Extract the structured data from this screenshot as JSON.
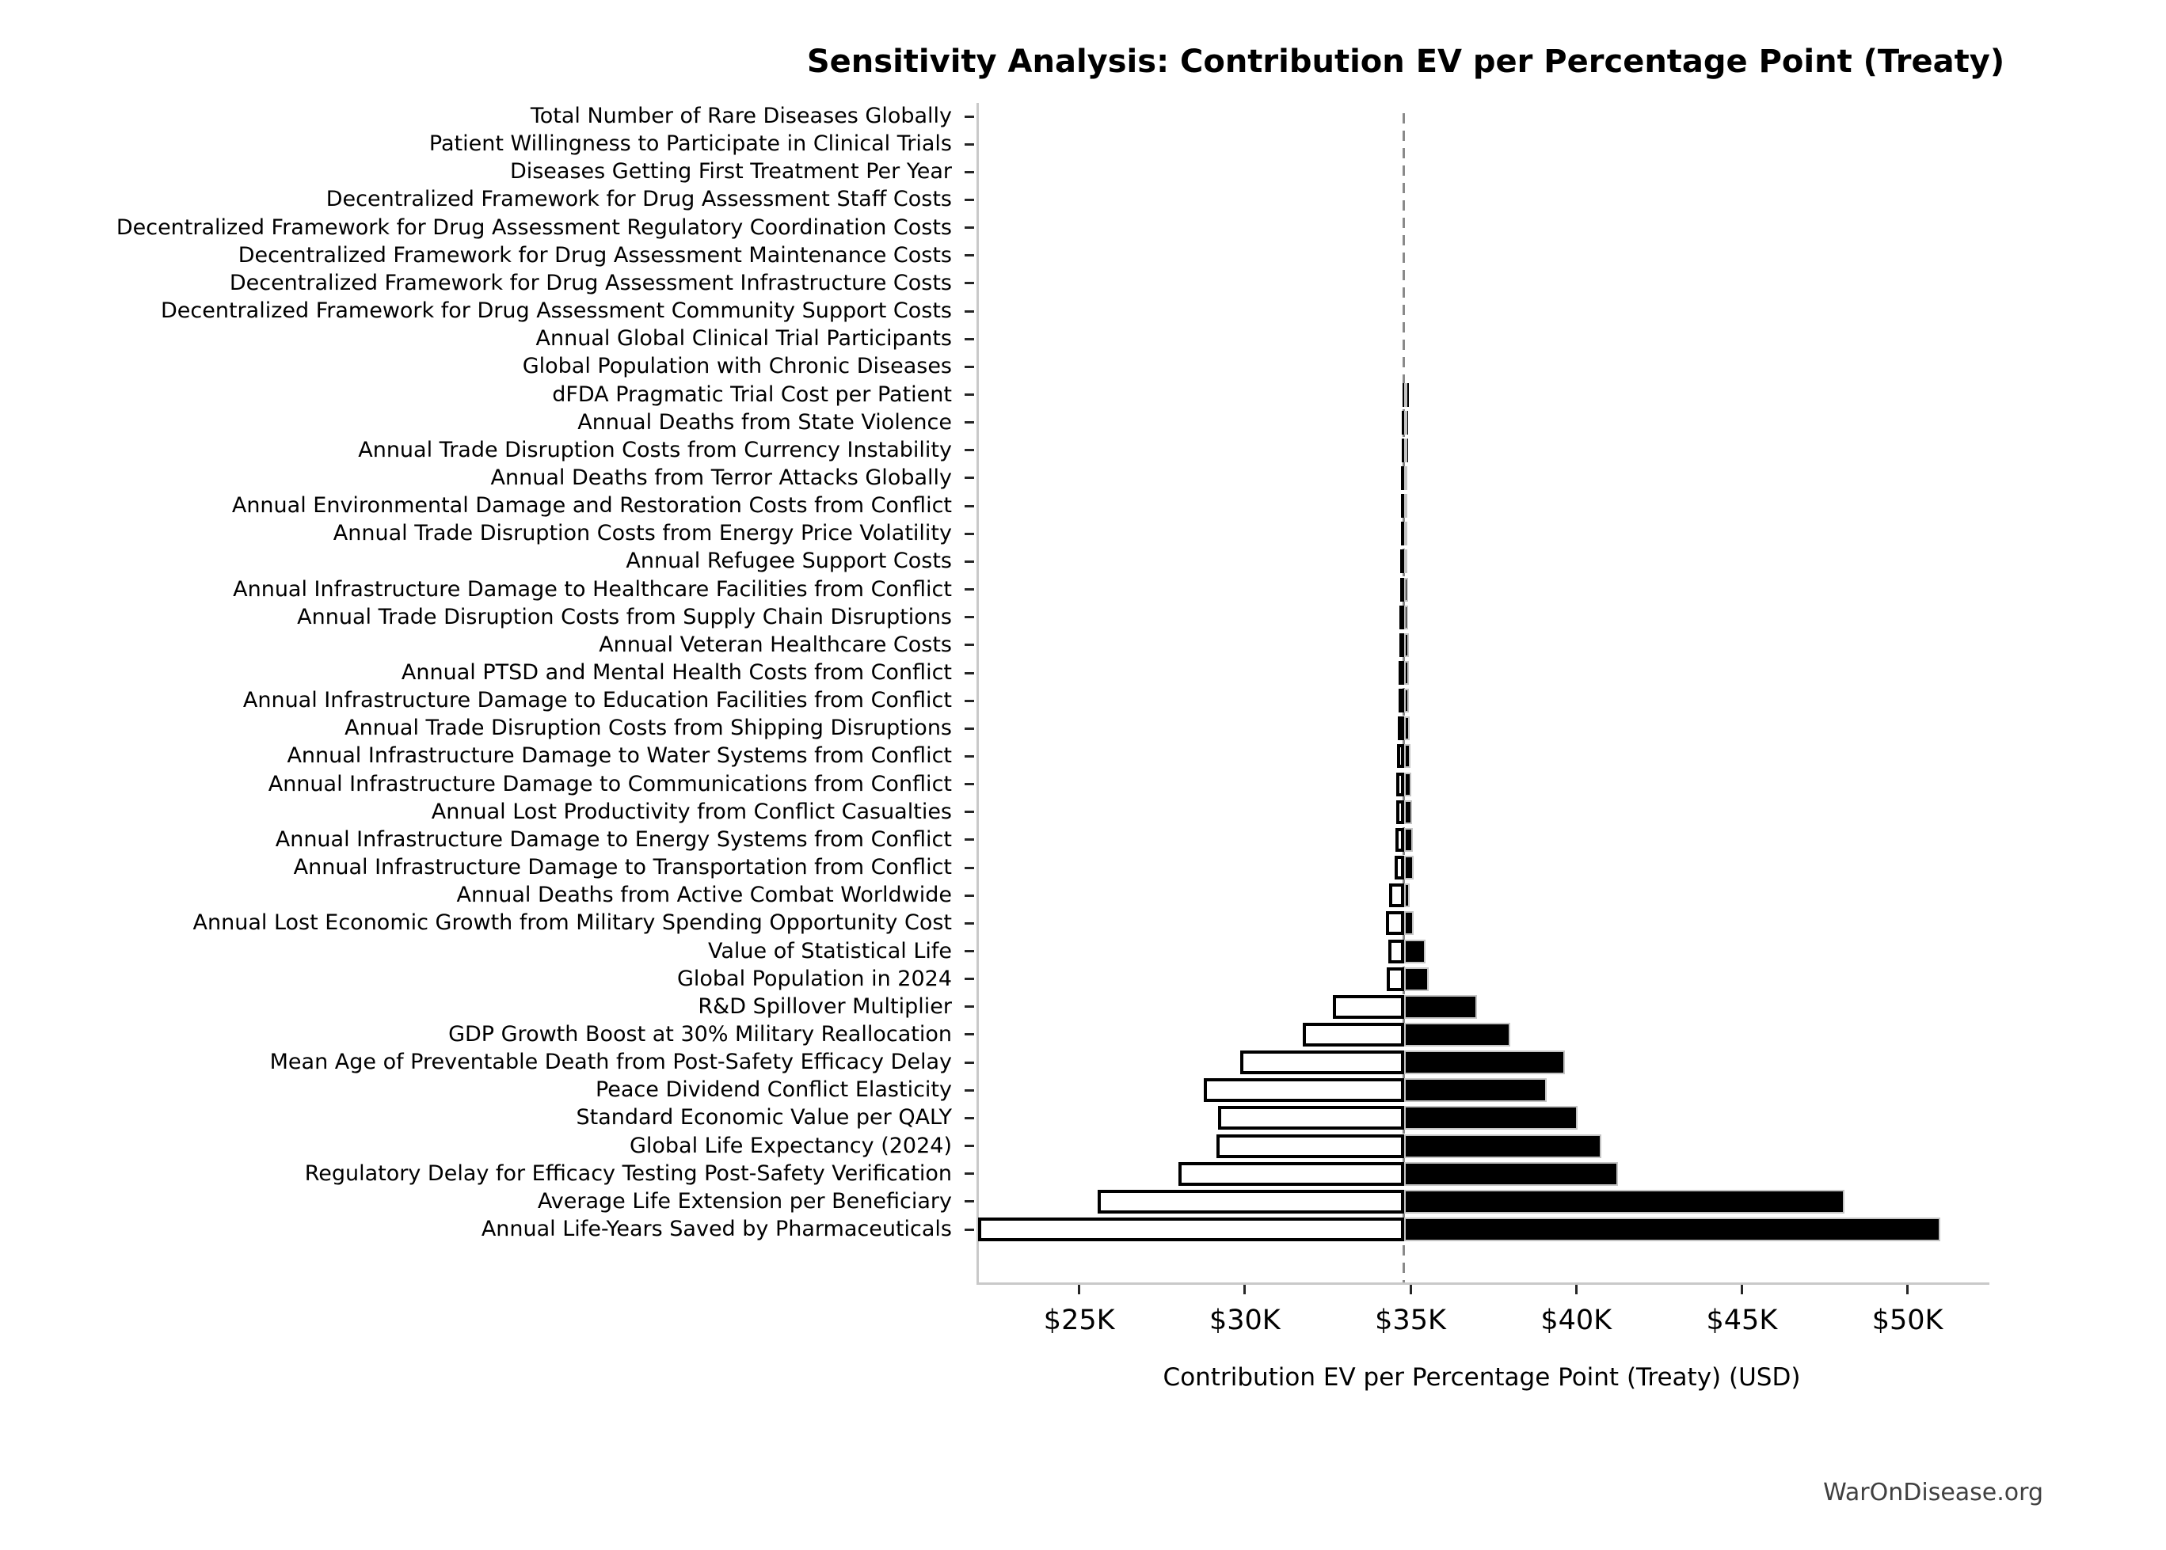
{
  "watermark": "WarOnDisease.org",
  "chart_data": {
    "type": "bar",
    "subtype": "tornado-sensitivity",
    "title": "Sensitivity Analysis: Contribution EV per Percentage Point (Treaty)",
    "xlabel": "Contribution EV per Percentage Point (Treaty) (USD)",
    "ylabel": "",
    "grid": false,
    "legend": "none",
    "baseline_usd": 34800,
    "xlim_usd": [
      21900,
      52400
    ],
    "xticks": [
      {
        "value": 25000,
        "label": "$25K"
      },
      {
        "value": 30000,
        "label": "$30K"
      },
      {
        "value": 35000,
        "label": "$35K"
      },
      {
        "value": 40000,
        "label": "$40K"
      },
      {
        "value": 45000,
        "label": "$45K"
      },
      {
        "value": 50000,
        "label": "$50K"
      }
    ],
    "bar_style": {
      "low_side_fill": "#ffffff",
      "low_side_border": "#000000",
      "high_side_fill": "#000000",
      "high_side_border": "#c4c4c4",
      "baseline_color": "#8a8a8a",
      "spine_color": "#c9c9c9"
    },
    "rows": [
      {
        "label": "Total Number of Rare Diseases Globally",
        "low_usd": null,
        "high_usd": null
      },
      {
        "label": "Patient Willingness to Participate in Clinical Trials",
        "low_usd": null,
        "high_usd": null
      },
      {
        "label": "Diseases Getting First Treatment Per Year",
        "low_usd": null,
        "high_usd": null
      },
      {
        "label": "Decentralized Framework for Drug Assessment Staff Costs",
        "low_usd": null,
        "high_usd": null
      },
      {
        "label": "Decentralized Framework for Drug Assessment Regulatory Coordination Costs",
        "low_usd": null,
        "high_usd": null
      },
      {
        "label": "Decentralized Framework for Drug Assessment Maintenance Costs",
        "low_usd": null,
        "high_usd": null
      },
      {
        "label": "Decentralized Framework for Drug Assessment Infrastructure Costs",
        "low_usd": null,
        "high_usd": null
      },
      {
        "label": "Decentralized Framework for Drug Assessment Community Support Costs",
        "low_usd": null,
        "high_usd": null
      },
      {
        "label": "Annual Global Clinical Trial Participants",
        "low_usd": null,
        "high_usd": null
      },
      {
        "label": "Global Population with Chronic Diseases",
        "low_usd": null,
        "high_usd": null
      },
      {
        "label": "dFDA Pragmatic Trial Cost per Patient",
        "low_usd": 34750,
        "high_usd": 34850
      },
      {
        "label": "Annual Deaths from State Violence",
        "low_usd": 34740,
        "high_usd": 34860
      },
      {
        "label": "Annual Trade Disruption Costs from Currency Instability",
        "low_usd": 34730,
        "high_usd": 34870
      },
      {
        "label": "Annual Deaths from Terror Attacks Globally",
        "low_usd": 34720,
        "high_usd": 34880
      },
      {
        "label": "Annual Environmental Damage and Restoration Costs from Conflict",
        "low_usd": 34710,
        "high_usd": 34890
      },
      {
        "label": "Annual Trade Disruption Costs from Energy Price Volatility",
        "low_usd": 34700,
        "high_usd": 34900
      },
      {
        "label": "Annual Refugee Support Costs",
        "low_usd": 34690,
        "high_usd": 34910
      },
      {
        "label": "Annual Infrastructure Damage to Healthcare Facilities from Conflict",
        "low_usd": 34680,
        "high_usd": 34920
      },
      {
        "label": "Annual Trade Disruption Costs from Supply Chain Disruptions",
        "low_usd": 34670,
        "high_usd": 34930
      },
      {
        "label": "Annual Veteran Healthcare Costs",
        "low_usd": 34660,
        "high_usd": 34940
      },
      {
        "label": "Annual PTSD and Mental Health Costs from Conflict",
        "low_usd": 34650,
        "high_usd": 34950
      },
      {
        "label": "Annual Infrastructure Damage to Education Facilities from Conflict",
        "low_usd": 34640,
        "high_usd": 34960
      },
      {
        "label": "Annual Trade Disruption Costs from Shipping Disruptions",
        "low_usd": 34620,
        "high_usd": 34980
      },
      {
        "label": "Annual Infrastructure Damage to Water Systems from Conflict",
        "low_usd": 34600,
        "high_usd": 35000
      },
      {
        "label": "Annual Infrastructure Damage to Communications from Conflict",
        "low_usd": 34580,
        "high_usd": 35020
      },
      {
        "label": "Annual Lost Productivity from Conflict Casualties",
        "low_usd": 34560,
        "high_usd": 35040
      },
      {
        "label": "Annual Infrastructure Damage to Energy Systems from Conflict",
        "low_usd": 34540,
        "high_usd": 35060
      },
      {
        "label": "Annual Infrastructure Damage to Transportation from Conflict",
        "low_usd": 34510,
        "high_usd": 35090
      },
      {
        "label": "Annual Deaths from Active Combat Worldwide",
        "low_usd": 34350,
        "high_usd": 34980
      },
      {
        "label": "Annual Lost Economic Growth from Military Spending Opportunity Cost",
        "low_usd": 34250,
        "high_usd": 35100
      },
      {
        "label": "Value of Statistical Life",
        "low_usd": 34340,
        "high_usd": 35460
      },
      {
        "label": "Global Population in 2024",
        "low_usd": 34280,
        "high_usd": 35550
      },
      {
        "label": "R&D Spillover Multiplier",
        "low_usd": 32650,
        "high_usd": 37000
      },
      {
        "label": "GDP Growth Boost at 30% Military Reallocation",
        "low_usd": 31750,
        "high_usd": 38000
      },
      {
        "label": "Mean Age of Preventable Death from Post-Safety Efficacy Delay",
        "low_usd": 29850,
        "high_usd": 39650
      },
      {
        "label": "Peace Dividend Conflict Elasticity",
        "low_usd": 28750,
        "high_usd": 39100
      },
      {
        "label": "Standard Economic Value per QALY",
        "low_usd": 29200,
        "high_usd": 40050
      },
      {
        "label": "Global Life Expectancy (2024)",
        "low_usd": 29150,
        "high_usd": 40750
      },
      {
        "label": "Regulatory Delay for Efficacy Testing Post-Safety Verification",
        "low_usd": 28000,
        "high_usd": 41250
      },
      {
        "label": "Average Life Extension per Beneficiary",
        "low_usd": 25550,
        "high_usd": 48100
      },
      {
        "label": "Annual Life-Years Saved by Pharmaceuticals",
        "low_usd": 21950,
        "high_usd": 51000
      }
    ]
  }
}
